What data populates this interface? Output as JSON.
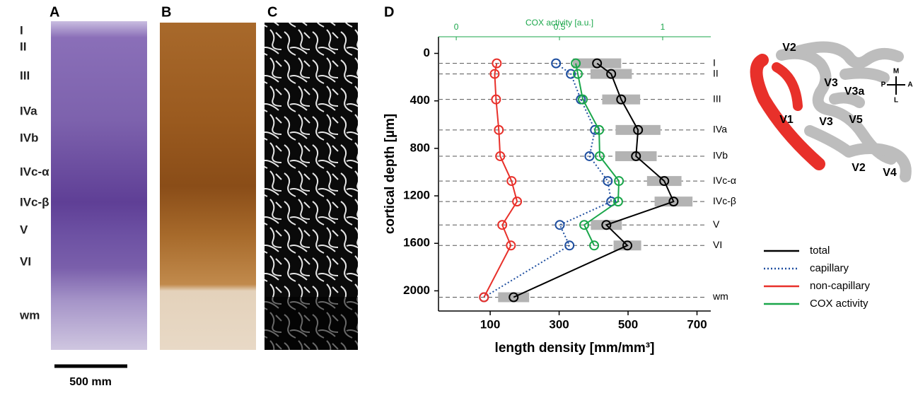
{
  "panel_a": {
    "label": "A",
    "layers": [
      "I",
      "II",
      "III",
      "IVa",
      "IVb",
      "IVc-α",
      "IVc-β",
      "V",
      "VI",
      "wm"
    ],
    "scale_bar": "500 mm"
  },
  "panel_b": {
    "label": "B"
  },
  "panel_c": {
    "label": "C"
  },
  "map": {
    "areas": [
      "V2",
      "V3",
      "V3a",
      "V1",
      "V3",
      "V5",
      "V2",
      "V4"
    ],
    "compass": [
      "M",
      "P",
      "A",
      "L"
    ]
  },
  "chart_data": {
    "type": "line",
    "panel_label": "D",
    "x_label": "length density [mm/mm³]",
    "y_label": "cortical depth [µm]",
    "x2_label": "COX activity [a.u.]",
    "categories": [
      "I",
      "II",
      "III",
      "IVa",
      "IVb",
      "IVc-α",
      "IVc-β",
      "V",
      "VI",
      "wm"
    ],
    "depths": [
      84,
      173,
      388,
      645,
      866,
      1075,
      1248,
      1445,
      1618,
      2054
    ],
    "xlim": [
      -50,
      740
    ],
    "xticks": [
      100,
      300,
      500,
      700
    ],
    "x2lim": [
      -0.086,
      1.233
    ],
    "x2ticks": [
      0,
      0.5,
      1
    ],
    "ylim": [
      -140,
      2170
    ],
    "yticks": [
      0,
      400,
      800,
      1200,
      1600,
      2000
    ],
    "y_inverted": true,
    "series": [
      {
        "name": "total",
        "color": "#000000",
        "style": "solid",
        "values": [
          410,
          451,
          480,
          529,
          523,
          605,
          632,
          437,
          498,
          168
        ],
        "errors": [
          70,
          60,
          55,
          65,
          60,
          50,
          55,
          45,
          40,
          45
        ]
      },
      {
        "name": "capillary",
        "color": "#1f4fa0",
        "style": "dotted",
        "values": [
          291,
          334,
          363,
          404,
          388,
          441,
          451,
          302,
          330,
          82
        ]
      },
      {
        "name": "non-capillary",
        "color": "#e8302a",
        "style": "solid",
        "values": [
          119,
          113,
          117,
          125,
          129,
          162,
          178,
          135,
          160,
          82
        ]
      },
      {
        "name": "COX activity",
        "color": "#1aa64a",
        "style": "solid",
        "axis": "x2",
        "values": [
          0.579,
          0.589,
          0.613,
          0.692,
          0.695,
          0.788,
          0.784,
          0.62,
          0.668,
          null
        ]
      }
    ]
  }
}
